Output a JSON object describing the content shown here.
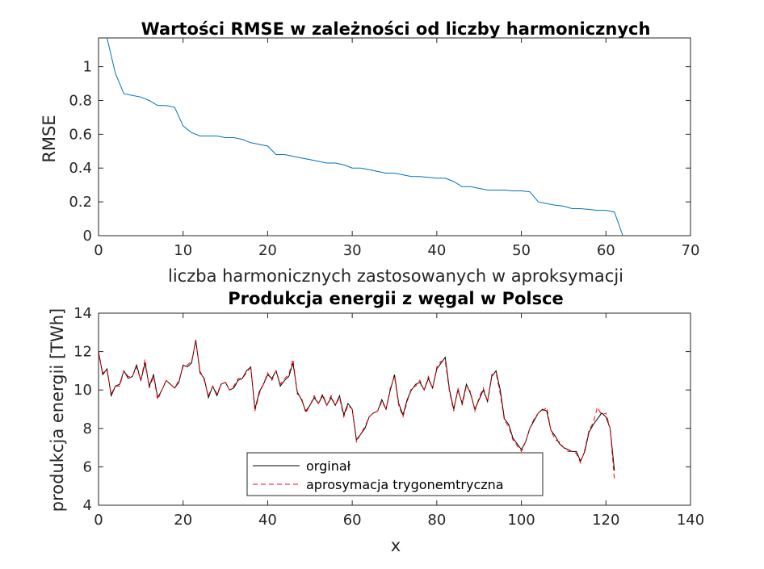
{
  "chart_data": [
    {
      "type": "line",
      "title": "Wartości RMSE w zależności od liczby harmonicznych",
      "xlabel": "liczba harmonicznych zastosowanych w aproksymacji",
      "ylabel": "RMSE",
      "xlim": [
        0,
        70
      ],
      "ylim": [
        0,
        1.17
      ],
      "xticks": [
        "0",
        "10",
        "20",
        "30",
        "40",
        "50",
        "60",
        "70"
      ],
      "yticks": [
        "0",
        "0.2",
        "0.4",
        "0.6",
        "0.8",
        "1"
      ],
      "grid": false,
      "color": "#0072BD",
      "series": [
        {
          "x": [
            1,
            2,
            3,
            4,
            5,
            6,
            7,
            8,
            9,
            10,
            11,
            12,
            13,
            14,
            15,
            16,
            17,
            18,
            19,
            20,
            21,
            22,
            23,
            24,
            25,
            26,
            27,
            28,
            29,
            30,
            31,
            32,
            33,
            34,
            35,
            36,
            37,
            38,
            39,
            40,
            41,
            42,
            43,
            44,
            45,
            46,
            47,
            48,
            49,
            50,
            51,
            52,
            53,
            54,
            55,
            56,
            57,
            58,
            59,
            60,
            61,
            62
          ],
          "values": [
            1.17,
            0.96,
            0.84,
            0.83,
            0.82,
            0.8,
            0.77,
            0.77,
            0.76,
            0.65,
            0.61,
            0.59,
            0.59,
            0.59,
            0.58,
            0.58,
            0.57,
            0.55,
            0.54,
            0.53,
            0.48,
            0.48,
            0.47,
            0.46,
            0.45,
            0.44,
            0.43,
            0.43,
            0.42,
            0.4,
            0.4,
            0.39,
            0.38,
            0.37,
            0.37,
            0.36,
            0.35,
            0.35,
            0.345,
            0.34,
            0.34,
            0.32,
            0.29,
            0.29,
            0.28,
            0.27,
            0.27,
            0.27,
            0.265,
            0.265,
            0.26,
            0.2,
            0.19,
            0.18,
            0.175,
            0.16,
            0.16,
            0.155,
            0.15,
            0.15,
            0.14,
            0.0
          ]
        }
      ]
    },
    {
      "type": "line",
      "title": "Produkcja energii z węgal w Polsce",
      "xlabel": "x",
      "ylabel": "produkcja energii [TWh]",
      "xlim": [
        0,
        140
      ],
      "ylim": [
        4,
        14
      ],
      "xticks": [
        "0",
        "20",
        "40",
        "60",
        "80",
        "100",
        "120",
        "140"
      ],
      "yticks": [
        "4",
        "6",
        "8",
        "10",
        "12",
        "14"
      ],
      "grid": false,
      "legend_position": "bottom-center",
      "series": [
        {
          "name": "orginał",
          "color": "#000000",
          "style": "solid",
          "values": [
            12.0,
            10.8,
            11.1,
            9.7,
            10.2,
            10.3,
            11.0,
            10.6,
            10.7,
            11.3,
            10.5,
            11.4,
            10.2,
            10.8,
            9.6,
            10.0,
            10.5,
            10.3,
            10.1,
            10.4,
            11.3,
            11.2,
            11.4,
            12.6,
            10.9,
            10.6,
            9.6,
            10.2,
            9.7,
            10.3,
            10.4,
            10.0,
            10.1,
            10.5,
            10.6,
            11.0,
            11.2,
            9.0,
            9.9,
            10.3,
            10.8,
            10.6,
            11.0,
            10.2,
            10.5,
            10.7,
            11.4,
            9.9,
            9.5,
            8.9,
            9.2,
            9.6,
            9.3,
            9.7,
            9.2,
            9.6,
            9.2,
            9.7,
            8.7,
            9.3,
            9.0,
            7.4,
            7.7,
            8.0,
            8.6,
            8.8,
            8.9,
            9.5,
            9.0,
            10.0,
            10.8,
            9.3,
            8.7,
            9.5,
            10.0,
            10.3,
            10.4,
            10.0,
            10.6,
            10.1,
            11.1,
            11.4,
            11.7,
            10.0,
            9.0,
            10.0,
            9.3,
            10.3,
            9.8,
            9.0,
            9.5,
            10.0,
            9.4,
            10.7,
            11.0,
            10.0,
            8.5,
            8.2,
            7.5,
            7.2,
            6.9,
            7.3,
            8.0,
            8.4,
            8.8,
            9.0,
            8.9,
            7.9,
            7.6,
            7.2,
            7.0,
            6.9,
            6.8,
            6.8,
            6.3,
            6.8,
            7.8,
            8.2,
            8.5,
            8.8,
            8.6,
            8.0,
            5.8
          ]
        },
        {
          "name": "aprosymacja trygonemtryczna",
          "color": "#FF0000",
          "style": "dashed",
          "values": [
            11.9,
            10.9,
            11.0,
            9.8,
            10.2,
            10.2,
            11.0,
            10.7,
            10.7,
            11.2,
            10.5,
            11.6,
            10.1,
            10.7,
            9.5,
            10.0,
            10.5,
            10.3,
            10.1,
            10.5,
            11.2,
            11.3,
            11.5,
            12.5,
            11.0,
            10.5,
            9.7,
            10.2,
            9.8,
            10.3,
            10.4,
            10.0,
            10.2,
            10.6,
            10.6,
            10.9,
            11.2,
            8.9,
            9.8,
            10.3,
            10.9,
            10.5,
            11.0,
            10.3,
            10.6,
            10.8,
            11.6,
            9.8,
            9.6,
            8.8,
            9.2,
            9.7,
            9.3,
            9.8,
            9.2,
            9.7,
            9.2,
            9.6,
            8.6,
            9.2,
            9.0,
            7.3,
            7.7,
            8.1,
            8.6,
            8.8,
            8.9,
            9.4,
            9.0,
            10.1,
            10.7,
            9.2,
            8.6,
            9.4,
            10.1,
            10.2,
            10.5,
            10.0,
            10.7,
            10.1,
            11.2,
            11.5,
            11.5,
            9.9,
            8.9,
            10.1,
            9.2,
            10.2,
            9.9,
            8.9,
            9.6,
            10.1,
            9.4,
            10.8,
            10.9,
            9.8,
            8.4,
            8.1,
            7.4,
            7.1,
            6.8,
            7.3,
            8.0,
            8.5,
            8.8,
            8.9,
            9.1,
            7.9,
            7.4,
            7.3,
            7.0,
            6.8,
            6.8,
            6.7,
            6.2,
            6.9,
            7.9,
            8.3,
            9.1,
            8.7,
            8.8,
            8.0,
            5.3
          ]
        }
      ]
    }
  ]
}
